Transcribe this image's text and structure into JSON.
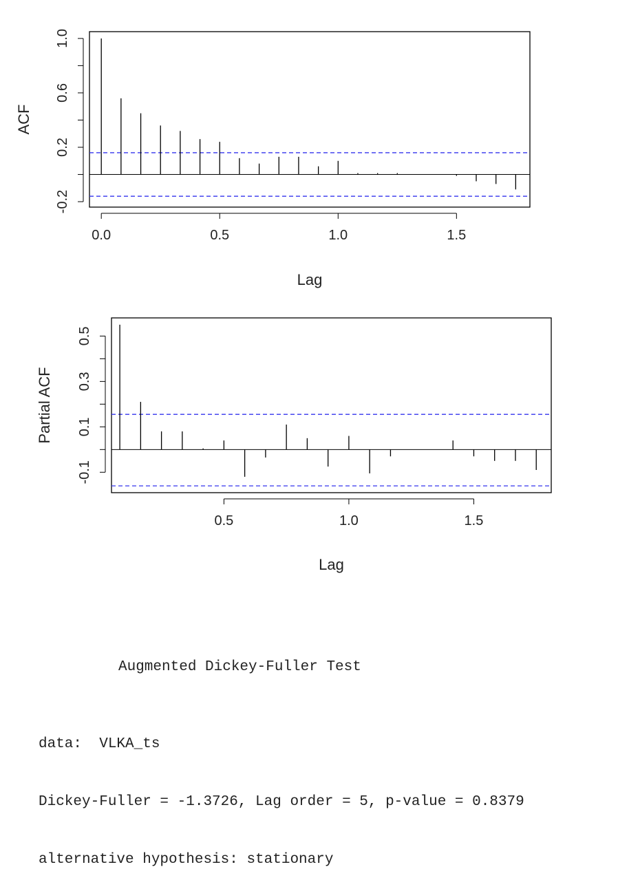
{
  "chart_data": [
    {
      "type": "acf",
      "xlabel": "Lag",
      "ylabel": "ACF",
      "xlim": [
        -0.05,
        1.81
      ],
      "ylim": [
        -0.24,
        1.05
      ],
      "xticks": [
        0.0,
        0.5,
        1.0,
        1.5
      ],
      "xtick_labels": [
        "0.0",
        "0.5",
        "1.0",
        "1.5"
      ],
      "yticks": [
        -0.2,
        0.2,
        0.6,
        1.0
      ],
      "ytick_labels": [
        "-0.2",
        "0.2",
        "0.6",
        "1.0"
      ],
      "confidence_bounds": [
        0.16,
        -0.16
      ],
      "lags": [
        0.0,
        0.0833,
        0.1667,
        0.25,
        0.3333,
        0.4167,
        0.5,
        0.5833,
        0.6667,
        0.75,
        0.8333,
        0.9167,
        1.0,
        1.0833,
        1.1667,
        1.25,
        1.3333,
        1.4167,
        1.5,
        1.5833,
        1.6667,
        1.75
      ],
      "values": [
        1.0,
        0.56,
        0.45,
        0.36,
        0.32,
        0.26,
        0.24,
        0.12,
        0.08,
        0.13,
        0.13,
        0.06,
        0.1,
        0.01,
        0.01,
        0.01,
        0.0,
        0.0,
        -0.01,
        -0.05,
        -0.07,
        -0.11
      ]
    },
    {
      "type": "pacf",
      "xlabel": "Lag",
      "ylabel": "Partial ACF",
      "xlim": [
        0.05,
        1.81
      ],
      "ylim": [
        -0.19,
        0.58
      ],
      "xticks": [
        0.5,
        1.0,
        1.5
      ],
      "xtick_labels": [
        "0.5",
        "1.0",
        "1.5"
      ],
      "yticks": [
        -0.1,
        0.1,
        0.3,
        0.5
      ],
      "ytick_labels": [
        "-0.1",
        "0.1",
        "0.3",
        "0.5"
      ],
      "confidence_bounds": [
        0.155,
        -0.16
      ],
      "lags": [
        0.0833,
        0.1667,
        0.25,
        0.3333,
        0.4167,
        0.5,
        0.5833,
        0.6667,
        0.75,
        0.8333,
        0.9167,
        1.0,
        1.0833,
        1.1667,
        1.25,
        1.3333,
        1.4167,
        1.5,
        1.5833,
        1.6667,
        1.75
      ],
      "values": [
        0.55,
        0.21,
        0.08,
        0.08,
        0.005,
        0.04,
        -0.12,
        -0.035,
        0.11,
        0.05,
        -0.075,
        0.06,
        -0.105,
        -0.03,
        0.0,
        0.0,
        0.04,
        -0.03,
        -0.05,
        -0.05,
        -0.09
      ]
    }
  ],
  "adf_test": {
    "heading": "Augmented Dickey-Fuller Test",
    "data_line": "data:  VLKA_ts",
    "result_line": "Dickey-Fuller = -1.3726, Lag order = 5, p-value = 0.8379",
    "alt_line": "alternative hypothesis: stationary"
  },
  "colors": {
    "ci_line": "#3333ee",
    "spike": "#000000",
    "frame": "#000000"
  }
}
